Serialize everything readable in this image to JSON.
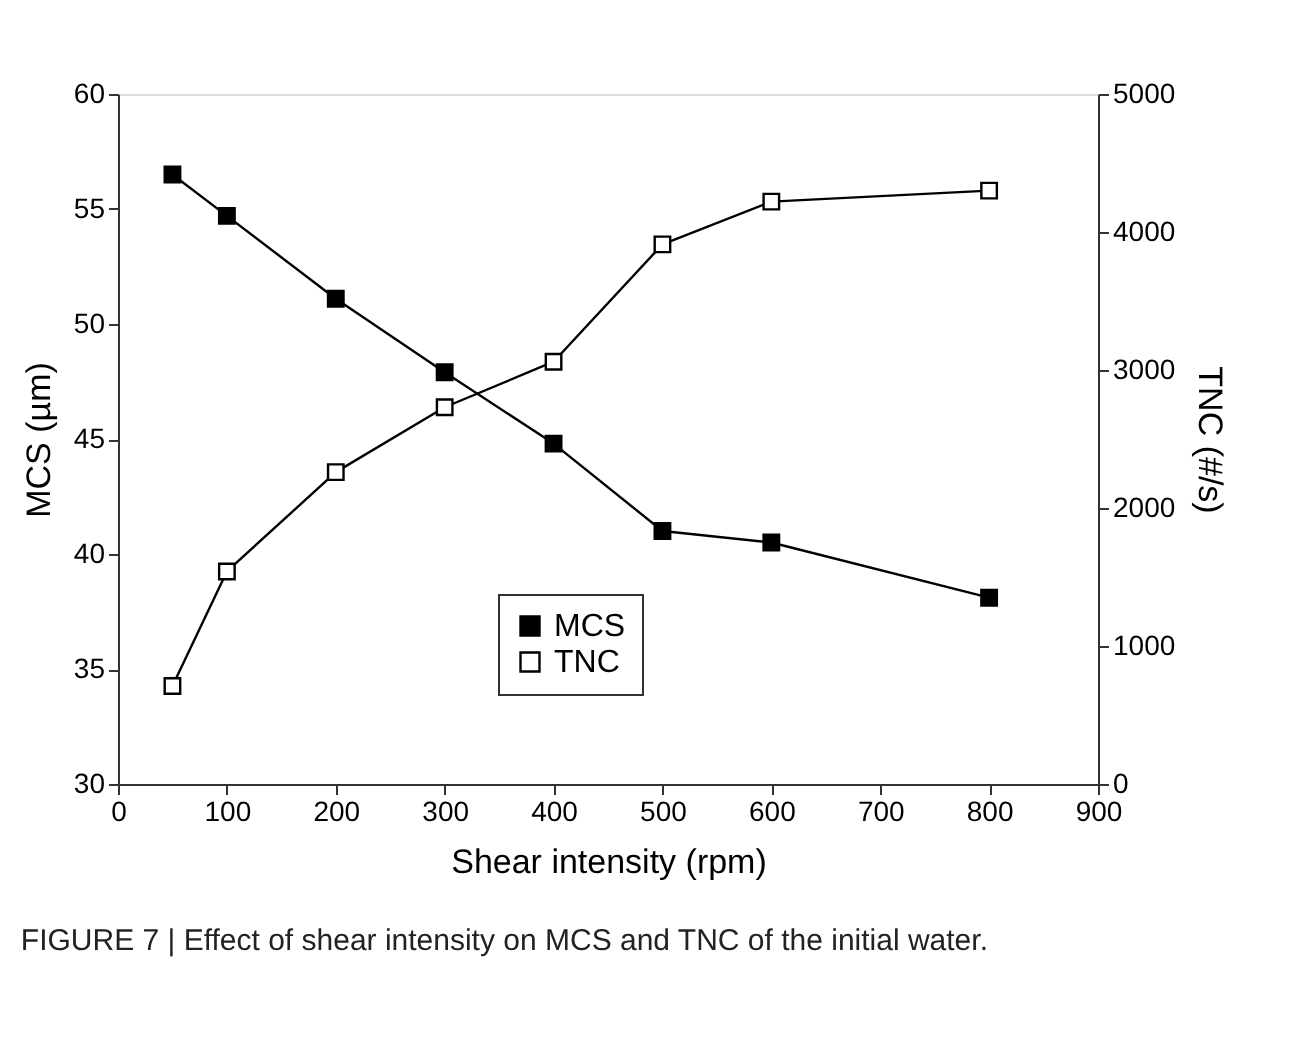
{
  "chart_data": {
    "type": "line",
    "xlabel": "Shear intensity (rpm)",
    "ylabel": "MCS (µm)",
    "y2label": "TNC (#/s)",
    "x": [
      50,
      100,
      200,
      300,
      400,
      500,
      600,
      800
    ],
    "series": [
      {
        "name": "MCS",
        "color": "#000000",
        "values": [
          56.5,
          54.7,
          51.1,
          47.9,
          44.8,
          41.0,
          40.5,
          38.1
        ]
      },
      {
        "name": "TNC",
        "color": "#000000",
        "axis": "y2",
        "values": [
          710,
          1540,
          2260,
          2730,
          3060,
          3910,
          4220,
          4300
        ]
      }
    ],
    "xlim": [
      0,
      900
    ],
    "xticks": [
      0,
      100,
      200,
      300,
      400,
      500,
      600,
      700,
      800,
      900
    ],
    "ylim": [
      30,
      60
    ],
    "yticks": [
      30,
      35,
      40,
      45,
      50,
      55,
      60
    ],
    "y2lim": [
      0,
      5000
    ],
    "y2ticks": [
      0,
      1000,
      2000,
      3000,
      4000,
      5000
    ],
    "marker": "square",
    "line_style": "solid",
    "grid": false,
    "legend": "bottom",
    "annotations": [
      "FIGURE 7 | Effect of shear intensity on MCS and TNC of the initial water."
    ]
  }
}
